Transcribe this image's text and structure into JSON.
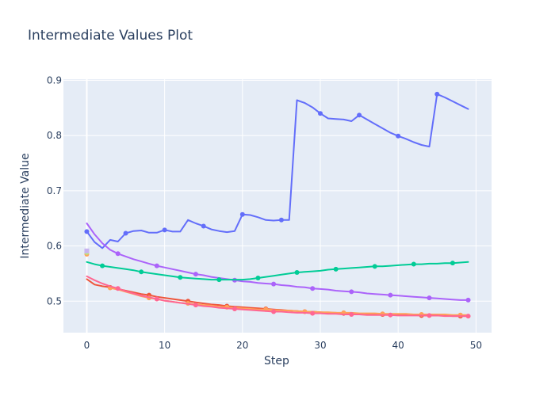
{
  "chart_data": {
    "type": "line",
    "title": "Intermediate Values Plot",
    "xlabel": "Step",
    "ylabel": "Intermediate Value",
    "xlim": [
      -3,
      52
    ],
    "ylim": [
      0.443,
      0.902
    ],
    "x_ticks": [
      0,
      10,
      20,
      30,
      40,
      50
    ],
    "y_ticks": [
      0.5,
      0.6,
      0.7,
      0.8,
      0.9
    ],
    "grid": true,
    "legend": "none",
    "background": "#e5ecf6",
    "series": [
      {
        "color": "#636efa",
        "x": [
          0,
          1,
          2,
          3,
          4,
          5,
          6,
          7,
          8,
          9,
          10,
          11,
          12,
          13,
          14,
          15,
          16,
          17,
          18,
          19,
          20,
          21,
          22,
          23,
          24,
          25,
          26,
          27,
          28,
          29,
          30,
          31,
          32,
          33,
          34,
          35,
          36,
          37,
          38,
          39,
          40,
          41,
          42,
          43,
          44,
          45,
          46,
          47,
          48,
          49
        ],
        "y": [
          0.626,
          0.607,
          0.596,
          0.611,
          0.608,
          0.623,
          0.627,
          0.628,
          0.624,
          0.624,
          0.629,
          0.626,
          0.626,
          0.647,
          0.641,
          0.636,
          0.63,
          0.627,
          0.625,
          0.627,
          0.657,
          0.656,
          0.652,
          0.647,
          0.646,
          0.647,
          0.647,
          0.864,
          0.859,
          0.851,
          0.84,
          0.831,
          0.83,
          0.829,
          0.826,
          0.837,
          0.829,
          0.821,
          0.813,
          0.805,
          0.799,
          0.794,
          0.788,
          0.783,
          0.78,
          0.875,
          0.869,
          0.862,
          0.855,
          0.848
        ],
        "marker_x": [
          0,
          5,
          10,
          15,
          20,
          25,
          30,
          35,
          40,
          45
        ]
      },
      {
        "color": "#ab63fa",
        "x": [
          0,
          1,
          2,
          3,
          4,
          5,
          6,
          7,
          8,
          9,
          10,
          11,
          12,
          13,
          14,
          15,
          16,
          17,
          18,
          19,
          20,
          21,
          22,
          23,
          24,
          25,
          26,
          27,
          28,
          29,
          30,
          31,
          32,
          33,
          34,
          35,
          36,
          37,
          38,
          39,
          40,
          41,
          42,
          43,
          44,
          45,
          46,
          47,
          48,
          49
        ],
        "y": [
          0.641,
          0.621,
          0.605,
          0.593,
          0.586,
          0.581,
          0.576,
          0.572,
          0.568,
          0.564,
          0.561,
          0.558,
          0.555,
          0.552,
          0.549,
          0.547,
          0.544,
          0.542,
          0.54,
          0.538,
          0.536,
          0.535,
          0.533,
          0.532,
          0.531,
          0.529,
          0.528,
          0.526,
          0.525,
          0.523,
          0.522,
          0.521,
          0.519,
          0.518,
          0.517,
          0.516,
          0.514,
          0.513,
          0.512,
          0.511,
          0.51,
          0.509,
          0.508,
          0.507,
          0.506,
          0.505,
          0.504,
          0.503,
          0.502,
          0.502
        ],
        "marker_x": [
          4,
          9,
          14,
          19,
          24,
          29,
          34,
          39,
          44,
          49
        ]
      },
      {
        "color": "#00cc96",
        "x": [
          0,
          1,
          2,
          3,
          4,
          5,
          6,
          7,
          8,
          9,
          10,
          11,
          12,
          13,
          14,
          15,
          16,
          17,
          18,
          19,
          20,
          21,
          22,
          23,
          24,
          25,
          26,
          27,
          28,
          29,
          30,
          31,
          32,
          33,
          34,
          35,
          36,
          37,
          38,
          39,
          40,
          41,
          42,
          43,
          44,
          45,
          46,
          47,
          48,
          49
        ],
        "y": [
          0.571,
          0.567,
          0.564,
          0.562,
          0.56,
          0.558,
          0.556,
          0.553,
          0.551,
          0.549,
          0.547,
          0.545,
          0.543,
          0.542,
          0.541,
          0.54,
          0.539,
          0.539,
          0.539,
          0.539,
          0.539,
          0.54,
          0.542,
          0.544,
          0.546,
          0.548,
          0.55,
          0.552,
          0.553,
          0.554,
          0.555,
          0.557,
          0.558,
          0.559,
          0.56,
          0.561,
          0.562,
          0.563,
          0.563,
          0.564,
          0.565,
          0.566,
          0.567,
          0.567,
          0.568,
          0.568,
          0.569,
          0.569,
          0.57,
          0.571
        ],
        "marker_x": [
          2,
          7,
          12,
          17,
          22,
          27,
          32,
          37,
          42,
          47
        ]
      },
      {
        "color": "#ef553b",
        "x": [
          0,
          1,
          2,
          3,
          4,
          5,
          6,
          7,
          8,
          9,
          10,
          11,
          12,
          13,
          14,
          15,
          16,
          17,
          18,
          19,
          20,
          21,
          22,
          23,
          24,
          25,
          26,
          27,
          28,
          29,
          30,
          31,
          32,
          33,
          34,
          35,
          36,
          37,
          38,
          39,
          40,
          41,
          42,
          43,
          44,
          45,
          46,
          47,
          48,
          49
        ],
        "y": [
          0.54,
          0.53,
          0.527,
          0.525,
          0.522,
          0.519,
          0.516,
          0.513,
          0.511,
          0.508,
          0.506,
          0.504,
          0.502,
          0.5,
          0.498,
          0.496,
          0.494,
          0.493,
          0.491,
          0.49,
          0.489,
          0.488,
          0.487,
          0.486,
          0.485,
          0.484,
          0.483,
          0.482,
          0.481,
          0.481,
          0.48,
          0.479,
          0.479,
          0.478,
          0.478,
          0.477,
          0.477,
          0.476,
          0.476,
          0.476,
          0.475,
          0.475,
          0.475,
          0.474,
          0.474,
          0.474,
          0.474,
          0.473,
          0.473,
          0.473
        ],
        "marker_x": [
          3,
          8,
          13,
          18,
          23,
          28,
          33,
          38,
          43,
          48
        ]
      },
      {
        "color": "#ffa15a",
        "x": [
          0,
          1,
          2,
          3,
          4,
          5,
          6,
          7,
          8,
          9,
          10,
          11,
          12,
          13,
          14,
          15,
          16,
          17,
          18,
          19,
          20,
          21,
          22,
          23,
          24,
          25,
          26,
          27,
          28,
          29,
          30,
          31,
          32,
          33,
          34,
          35,
          36,
          37,
          38,
          39,
          40,
          41,
          42,
          43,
          44,
          45,
          46,
          47,
          48,
          49
        ],
        "y": [
          0.585,
          null,
          null,
          0.524,
          0.521,
          0.517,
          0.513,
          0.509,
          0.506,
          0.504,
          0.501,
          0.499,
          0.497,
          0.496,
          0.494,
          0.493,
          0.492,
          0.49,
          0.489,
          0.488,
          0.487,
          0.486,
          0.485,
          0.485,
          0.484,
          0.483,
          0.483,
          0.482,
          0.481,
          0.481,
          0.48,
          0.48,
          0.479,
          0.479,
          0.479,
          0.478,
          0.478,
          0.478,
          0.477,
          0.477,
          0.477,
          0.477,
          0.476,
          0.476,
          0.476,
          0.476,
          0.476,
          0.475,
          0.475,
          0.475
        ],
        "marker_x": [
          0,
          3,
          8,
          13,
          18,
          23,
          28,
          33,
          38,
          43,
          48
        ]
      },
      {
        "color": "#ff6692",
        "x": [
          0,
          1,
          2,
          3,
          4,
          5,
          6,
          7,
          8,
          9,
          10,
          11,
          12,
          13,
          14,
          15,
          16,
          17,
          18,
          19,
          20,
          21,
          22,
          23,
          24,
          25,
          26,
          27,
          28,
          29,
          30,
          31,
          32,
          33,
          34,
          35,
          36,
          37,
          38,
          39,
          40,
          41,
          42,
          43,
          44,
          45,
          46,
          47,
          48,
          49
        ],
        "y": [
          0.545,
          0.538,
          0.532,
          0.527,
          0.523,
          0.518,
          0.514,
          0.51,
          0.507,
          0.504,
          0.501,
          0.499,
          0.497,
          0.495,
          0.493,
          0.491,
          0.49,
          0.488,
          0.487,
          0.486,
          0.485,
          0.484,
          0.483,
          0.482,
          0.481,
          0.481,
          0.48,
          0.479,
          0.479,
          0.478,
          0.478,
          0.477,
          0.477,
          0.476,
          0.476,
          0.476,
          0.475,
          0.475,
          0.475,
          0.475,
          0.474,
          0.474,
          0.474,
          0.474,
          0.474,
          0.474,
          0.473,
          0.473,
          0.473,
          0.473
        ],
        "marker_x": [
          4,
          9,
          14,
          19,
          24,
          29,
          34,
          39,
          44,
          49
        ]
      },
      {
        "color": "#b6e880",
        "x": [
          0
        ],
        "y": [
          0.588
        ],
        "marker_x": [
          0
        ]
      },
      {
        "color": "#c8b4f0",
        "x": [
          0
        ],
        "y": [
          0.591
        ],
        "marker_x": [
          0
        ],
        "marker_shape": "square"
      }
    ]
  }
}
